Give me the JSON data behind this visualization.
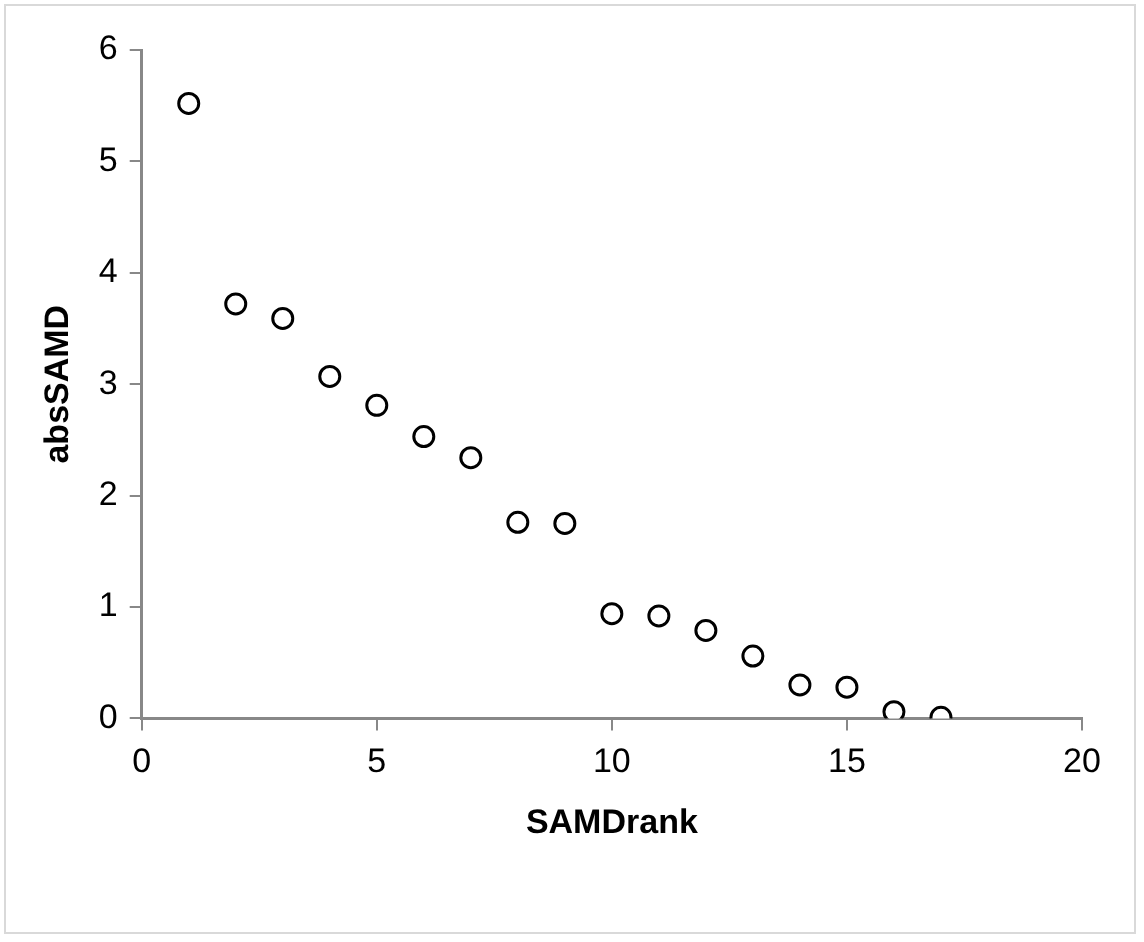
{
  "chart_data": {
    "type": "scatter",
    "xlabel": "SAMDrank",
    "ylabel": "absSAMD",
    "x": [
      1,
      2,
      3,
      4,
      5,
      6,
      7,
      8,
      9,
      10,
      11,
      12,
      13,
      14,
      15,
      16,
      17
    ],
    "values": [
      5.52,
      3.72,
      3.59,
      3.07,
      2.81,
      2.53,
      2.34,
      1.76,
      1.75,
      0.94,
      0.92,
      0.79,
      0.56,
      0.3,
      0.28,
      0.06,
      0.01
    ],
    "color": "#000000",
    "marker": "circle",
    "xlim": [
      0,
      20
    ],
    "xticks": [
      0,
      5,
      10,
      15,
      20
    ],
    "ylim": [
      0,
      6
    ],
    "yticks": [
      0,
      1,
      2,
      3,
      4,
      5,
      6
    ],
    "grid": false,
    "legend": false
  }
}
